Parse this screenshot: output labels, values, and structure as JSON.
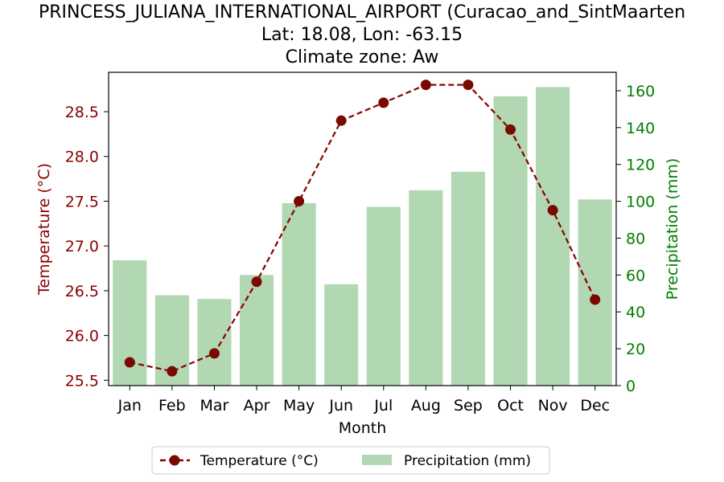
{
  "chart_data": {
    "type": "bar+line",
    "title_lines": [
      "PRINCESS_JULIANA_INTERNATIONAL_AIRPORT (Curacao_and_SintMaarten",
      "Lat: 18.08, Lon: -63.15",
      "Climate zone: Aw"
    ],
    "xlabel": "Month",
    "ylabel_left": "Temperature (°C)",
    "ylabel_right": "Precipitation (mm)",
    "categories": [
      "Jan",
      "Feb",
      "Mar",
      "Apr",
      "May",
      "Jun",
      "Jul",
      "Aug",
      "Sep",
      "Oct",
      "Nov",
      "Dec"
    ],
    "series": [
      {
        "name": "Temperature (°C)",
        "type": "line",
        "axis": "left",
        "values": [
          25.7,
          25.6,
          25.8,
          26.6,
          27.5,
          28.4,
          28.6,
          28.8,
          28.8,
          28.3,
          27.4,
          26.4
        ]
      },
      {
        "name": "Precipitation (mm)",
        "type": "bar",
        "axis": "right",
        "values": [
          68,
          49,
          47,
          60,
          99,
          55,
          97,
          106,
          116,
          157,
          162,
          101
        ]
      }
    ],
    "ylim_left": [
      25.44,
      28.94
    ],
    "ylim_right": [
      0,
      170
    ],
    "yticks_left": [
      "25.5",
      "26.0",
      "26.5",
      "27.0",
      "27.5",
      "28.0",
      "28.5"
    ],
    "yticks_right": [
      "0",
      "20",
      "40",
      "60",
      "80",
      "100",
      "120",
      "140",
      "160"
    ],
    "legend": {
      "placement": "bottom-center",
      "entries": [
        "Temperature (°C)",
        "Precipitation (mm)"
      ]
    },
    "grid": false,
    "colors": {
      "temperature": "#8b0000",
      "temperature_marker": "#7a0a00",
      "precipitation": "#b1d8b2",
      "left_axis": "#8b0000",
      "right_axis": "#007f00",
      "axis": "#000000"
    }
  }
}
